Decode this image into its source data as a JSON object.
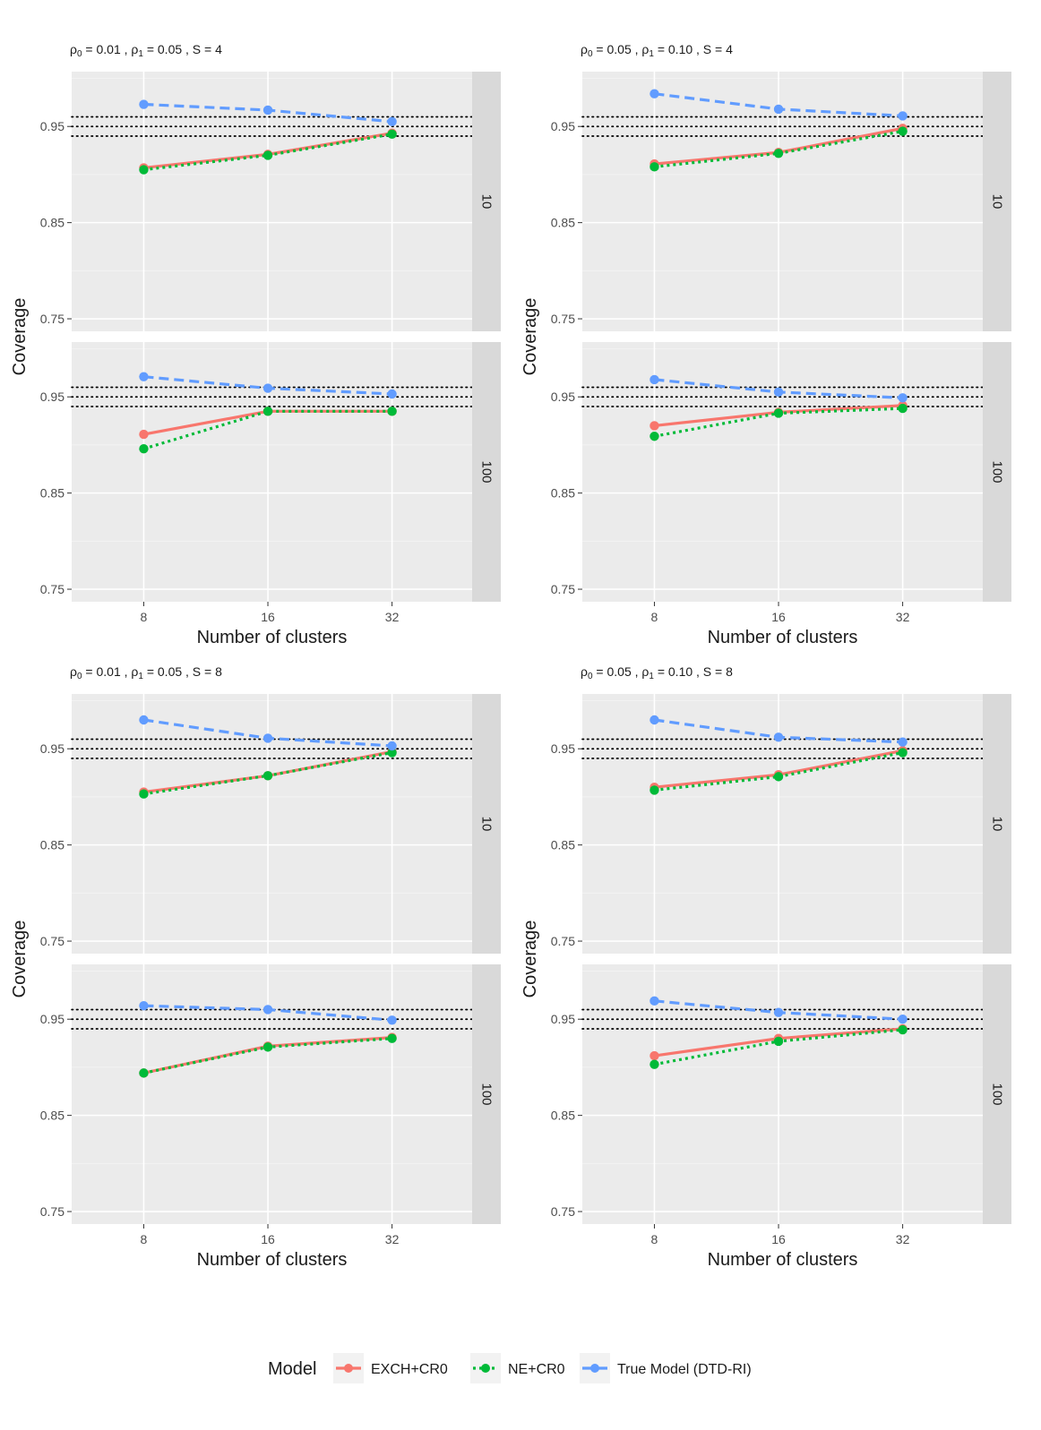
{
  "chart_data": {
    "type": "line",
    "xlabel": "Number of clusters",
    "ylabel": "Coverage",
    "x_categories": [
      8,
      16,
      32
    ],
    "y_ticks": [
      0.75,
      0.85,
      0.95
    ],
    "y_tick_labels": [
      "0.75",
      "0.85",
      "0.95"
    ],
    "ylim": [
      0.737,
      1.007
    ],
    "reference_lines": [
      0.94,
      0.95,
      0.96
    ],
    "reference_line_style": "dotted",
    "legend": {
      "title": "Model",
      "position": "bottom",
      "entries": [
        "EXCH+CR0",
        "NE+CR0",
        "True Model (DTD-RI)"
      ]
    },
    "series_styles": [
      {
        "name": "EXCH+CR0",
        "color": "#f8766d",
        "dash": "solid"
      },
      {
        "name": "NE+CR0",
        "color": "#00ba38",
        "dash": "dotted"
      },
      {
        "name": "True Model (DTD-RI)",
        "color": "#619cff",
        "dash": "dashed"
      }
    ],
    "figures": [
      {
        "title": {
          "rho0": "0.01",
          "rho1": "0.05",
          "S": "4"
        },
        "facets": [
          {
            "strip": "10",
            "series": [
              {
                "name": "EXCH+CR0",
                "values": [
                  0.907,
                  0.921,
                  0.943
                ]
              },
              {
                "name": "NE+CR0",
                "values": [
                  0.905,
                  0.92,
                  0.942
                ]
              },
              {
                "name": "True Model (DTD-RI)",
                "values": [
                  0.973,
                  0.967,
                  0.955
                ]
              }
            ]
          },
          {
            "strip": "100",
            "series": [
              {
                "name": "EXCH+CR0",
                "values": [
                  0.911,
                  0.935,
                  0.935
                ]
              },
              {
                "name": "NE+CR0",
                "values": [
                  0.896,
                  0.935,
                  0.935
                ]
              },
              {
                "name": "True Model (DTD-RI)",
                "values": [
                  0.971,
                  0.959,
                  0.953
                ]
              }
            ]
          }
        ]
      },
      {
        "title": {
          "rho0": "0.05",
          "rho1": "0.10",
          "S": "4"
        },
        "facets": [
          {
            "strip": "10",
            "series": [
              {
                "name": "EXCH+CR0",
                "values": [
                  0.911,
                  0.923,
                  0.948
                ]
              },
              {
                "name": "NE+CR0",
                "values": [
                  0.908,
                  0.922,
                  0.945
                ]
              },
              {
                "name": "True Model (DTD-RI)",
                "values": [
                  0.984,
                  0.968,
                  0.961
                ]
              }
            ]
          },
          {
            "strip": "100",
            "series": [
              {
                "name": "EXCH+CR0",
                "values": [
                  0.92,
                  0.934,
                  0.941
                ]
              },
              {
                "name": "NE+CR0",
                "values": [
                  0.909,
                  0.933,
                  0.938
                ]
              },
              {
                "name": "True Model (DTD-RI)",
                "values": [
                  0.968,
                  0.955,
                  0.949
                ]
              }
            ]
          }
        ]
      },
      {
        "title": {
          "rho0": "0.01",
          "rho1": "0.05",
          "S": "8"
        },
        "facets": [
          {
            "strip": "10",
            "series": [
              {
                "name": "EXCH+CR0",
                "values": [
                  0.905,
                  0.922,
                  0.947
                ]
              },
              {
                "name": "NE+CR0",
                "values": [
                  0.903,
                  0.922,
                  0.946
                ]
              },
              {
                "name": "True Model (DTD-RI)",
                "values": [
                  0.98,
                  0.961,
                  0.953
                ]
              }
            ]
          },
          {
            "strip": "100",
            "series": [
              {
                "name": "EXCH+CR0",
                "values": [
                  0.894,
                  0.922,
                  0.931
                ]
              },
              {
                "name": "NE+CR0",
                "values": [
                  0.894,
                  0.921,
                  0.93
                ]
              },
              {
                "name": "True Model (DTD-RI)",
                "values": [
                  0.964,
                  0.96,
                  0.949
                ]
              }
            ]
          }
        ]
      },
      {
        "title": {
          "rho0": "0.05",
          "rho1": "0.10",
          "S": "8"
        },
        "facets": [
          {
            "strip": "10",
            "series": [
              {
                "name": "EXCH+CR0",
                "values": [
                  0.91,
                  0.923,
                  0.948
                ]
              },
              {
                "name": "NE+CR0",
                "values": [
                  0.907,
                  0.921,
                  0.946
                ]
              },
              {
                "name": "True Model (DTD-RI)",
                "values": [
                  0.98,
                  0.962,
                  0.957
                ]
              }
            ]
          },
          {
            "strip": "100",
            "series": [
              {
                "name": "EXCH+CR0",
                "values": [
                  0.912,
                  0.93,
                  0.94
                ]
              },
              {
                "name": "NE+CR0",
                "values": [
                  0.903,
                  0.927,
                  0.939
                ]
              },
              {
                "name": "True Model (DTD-RI)",
                "values": [
                  0.969,
                  0.957,
                  0.95
                ]
              }
            ]
          }
        ]
      }
    ]
  }
}
